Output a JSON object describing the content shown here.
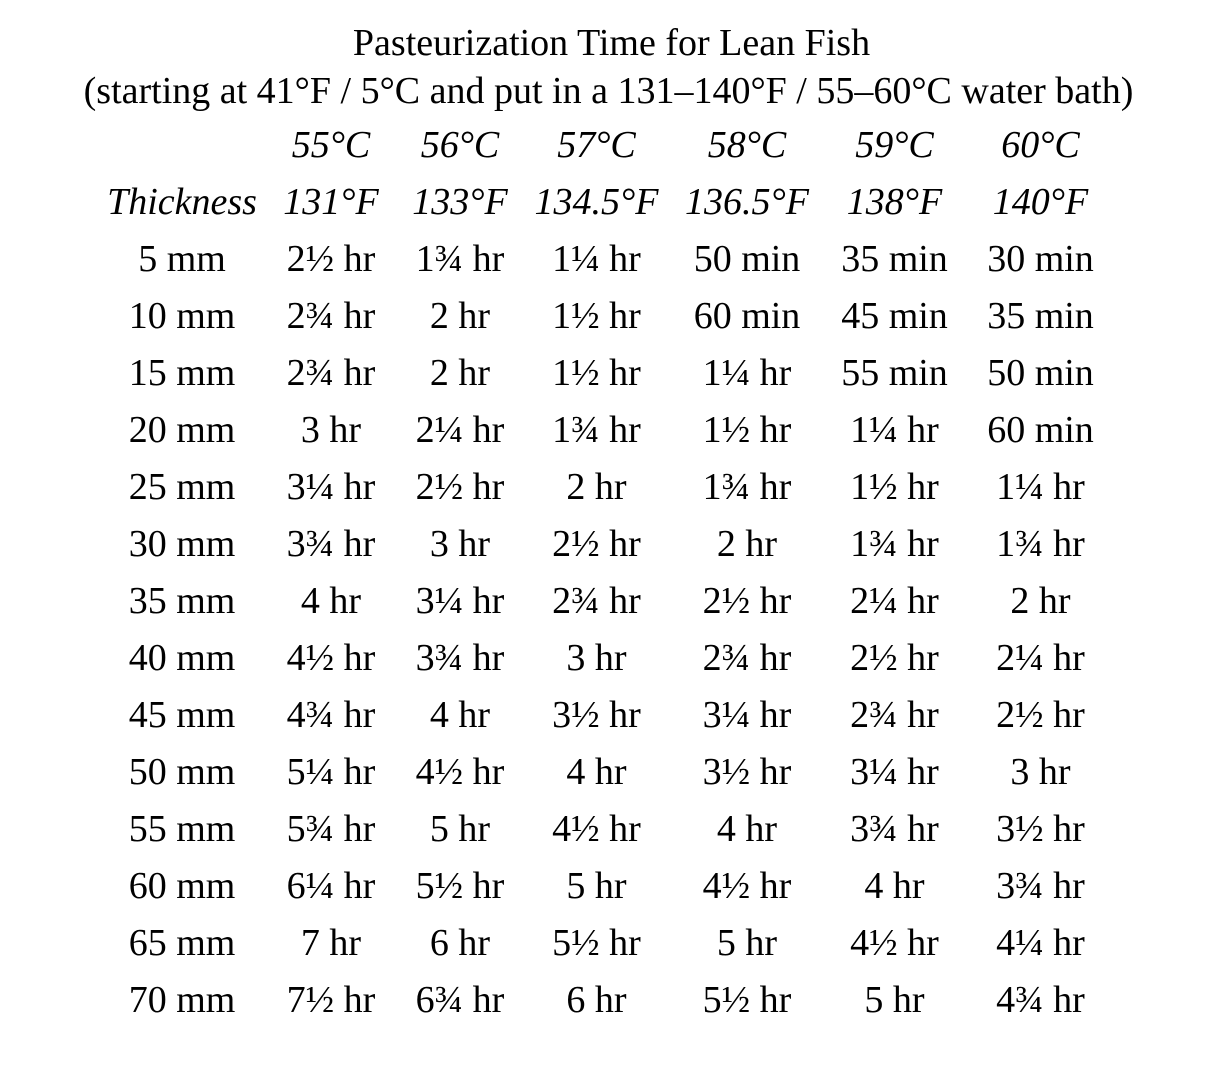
{
  "title": "Pasteurization Time for Lean Fish",
  "subtitle": "(starting at 41°F / 5°C and put in a 131–140°F / 55–60°C water bath)",
  "table": {
    "header_celsius": [
      "",
      "55°C",
      "56°C",
      "57°C",
      "58°C",
      "59°C",
      "60°C"
    ],
    "header_fahrenheit": [
      "Thickness",
      "131°F",
      "133°F",
      "134.5°F",
      "136.5°F",
      "138°F",
      "140°F"
    ],
    "rows": [
      [
        "5 mm",
        "2½ hr",
        "1¾ hr",
        "1¼ hr",
        "50 min",
        "35 min",
        "30 min"
      ],
      [
        "10 mm",
        "2¾ hr",
        "2 hr",
        "1½ hr",
        "60 min",
        "45 min",
        "35 min"
      ],
      [
        "15 mm",
        "2¾ hr",
        "2 hr",
        "1½ hr",
        "1¼ hr",
        "55 min",
        "50 min"
      ],
      [
        "20 mm",
        "3 hr",
        "2¼ hr",
        "1¾ hr",
        "1½ hr",
        "1¼ hr",
        "60 min"
      ],
      [
        "25 mm",
        "3¼ hr",
        "2½ hr",
        "2 hr",
        "1¾ hr",
        "1½ hr",
        "1¼ hr"
      ],
      [
        "30 mm",
        "3¾ hr",
        "3 hr",
        "2½ hr",
        "2 hr",
        "1¾ hr",
        "1¾ hr"
      ],
      [
        "35 mm",
        "4 hr",
        "3¼ hr",
        "2¾ hr",
        "2½ hr",
        "2¼ hr",
        "2 hr"
      ],
      [
        "40 mm",
        "4½ hr",
        "3¾ hr",
        "3 hr",
        "2¾ hr",
        "2½ hr",
        "2¼ hr"
      ],
      [
        "45 mm",
        "4¾ hr",
        "4 hr",
        "3½ hr",
        "3¼ hr",
        "2¾ hr",
        "2½ hr"
      ],
      [
        "50 mm",
        "5¼ hr",
        "4½ hr",
        "4 hr",
        "3½ hr",
        "3¼ hr",
        "3 hr"
      ],
      [
        "55 mm",
        "5¾ hr",
        "5 hr",
        "4½ hr",
        "4 hr",
        "3¾ hr",
        "3½ hr"
      ],
      [
        "60 mm",
        "6¼ hr",
        "5½ hr",
        "5 hr",
        "4½ hr",
        "4 hr",
        "3¾ hr"
      ],
      [
        "65 mm",
        "7 hr",
        "6 hr",
        "5½ hr",
        "5 hr",
        "4½ hr",
        "4¼ hr"
      ],
      [
        "70 mm",
        "7½ hr",
        "6¾ hr",
        "6 hr",
        "5½ hr",
        "5 hr",
        "4¾ hr"
      ]
    ]
  }
}
